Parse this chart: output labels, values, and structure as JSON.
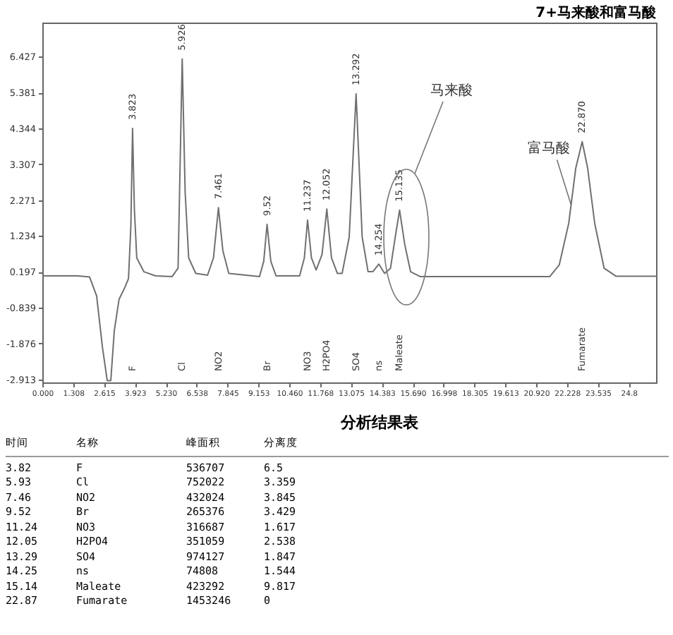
{
  "chart_data": [
    {
      "type": "line",
      "title": "7+马来酸和富马酸",
      "xlim": [
        0,
        26
      ],
      "xticks": [
        {
          "value": 0,
          "label": "0.000"
        },
        1.308,
        2.615,
        3.923,
        {
          "value": 5.23,
          "label": "5.230"
        },
        6.538,
        7.845,
        9.153,
        {
          "value": 10.46,
          "label": "10.460"
        },
        11.768,
        13.075,
        14.383,
        {
          "value": 15.69,
          "label": "15.690"
        },
        16.998,
        18.305,
        19.613,
        {
          "value": 20.92,
          "label": "20.920"
        },
        22.228,
        23.535,
        {
          "value": 24.843,
          "label": "24.8"
        }
      ],
      "ylim": [
        -3.0,
        7.4
      ],
      "yticks": [
        -2.913,
        -1.876,
        -0.839,
        0.197,
        1.234,
        2.271,
        3.307,
        4.344,
        5.381,
        6.427
      ],
      "grid": false,
      "line_style": "solid",
      "series": [
        {
          "color": "#707070",
          "x": [
            0,
            1.5,
            2.0,
            2.3,
            2.55,
            2.75,
            2.9,
            3.05,
            3.25,
            3.5,
            3.65,
            3.75,
            3.823,
            3.9,
            4.0,
            4.3,
            4.8,
            5.5,
            5.75,
            5.926,
            6.05,
            6.2,
            6.5,
            7.0,
            7.25,
            7.461,
            7.65,
            7.9,
            9.2,
            9.38,
            9.52,
            9.68,
            9.9,
            10.9,
            11.1,
            11.237,
            11.4,
            11.6,
            11.85,
            12.052,
            12.25,
            12.5,
            12.7,
            13.0,
            13.292,
            13.55,
            13.8,
            14.0,
            14.254,
            14.5,
            14.75,
            14.95,
            15.135,
            15.35,
            15.6,
            16.0,
            21.5,
            21.9,
            22.3,
            22.6,
            22.87,
            23.1,
            23.4,
            23.8,
            24.3,
            26
          ],
          "values": [
            0.08,
            0.08,
            0.05,
            -0.5,
            -2.0,
            -2.95,
            -2.95,
            -1.5,
            -0.6,
            -0.25,
            0.0,
            1.5,
            4.34,
            2.0,
            0.6,
            0.2,
            0.08,
            0.06,
            0.3,
            6.35,
            2.5,
            0.6,
            0.15,
            0.1,
            0.6,
            2.05,
            0.8,
            0.15,
            0.06,
            0.5,
            1.57,
            0.5,
            0.08,
            0.08,
            0.6,
            1.69,
            0.6,
            0.25,
            0.7,
            2.01,
            0.6,
            0.15,
            0.15,
            1.2,
            5.34,
            1.2,
            0.2,
            0.2,
            0.42,
            0.15,
            0.3,
            1.2,
            1.98,
            1.0,
            0.2,
            0.06,
            0.06,
            0.4,
            1.6,
            3.2,
            3.96,
            3.2,
            1.6,
            0.3,
            0.07,
            0.07
          ]
        }
      ],
      "annotations": [
        {
          "text": "3.823",
          "x": 3.823,
          "y": 4.34
        },
        {
          "text": "5.926",
          "x": 5.926,
          "y": 6.35
        },
        {
          "text": "7.461",
          "x": 7.461,
          "y": 2.05
        },
        {
          "text": "9.52",
          "x": 9.52,
          "y": 1.57
        },
        {
          "text": "11.237",
          "x": 11.237,
          "y": 1.69
        },
        {
          "text": "12.052",
          "x": 12.052,
          "y": 2.01
        },
        {
          "text": "13.292",
          "x": 13.292,
          "y": 5.34
        },
        {
          "text": "14.254",
          "x": 14.254,
          "y": 0.42
        },
        {
          "text": "15.135",
          "x": 15.135,
          "y": 1.98
        },
        {
          "text": "22.870",
          "x": 22.87,
          "y": 3.96
        },
        "F",
        "Cl",
        "NO2",
        "Br",
        "NO3",
        "H2PO4",
        "SO4",
        "ns",
        "Maleate",
        "Fumarate",
        "马来酸",
        {
          "text": "富马酸",
          "x": 22.4,
          "y": 2.13
        }
      ]
    },
    {
      "type": "other",
      "title": "分析结果表",
      "categories": [
        "时间",
        "名称",
        "峰面积",
        "分离度"
      ],
      "annotations": [
        "3.82",
        "F",
        "536707",
        "6.5",
        "5.93",
        "Cl",
        "752022",
        "3.359",
        "7.46",
        "NO2",
        "432024",
        "3.845",
        "9.52",
        "Br",
        "265376",
        "3.429",
        "11.24",
        "NO3",
        "316687",
        "1.617",
        "12.05",
        "H2PO4",
        "351059",
        "2.538",
        "13.29",
        "SO4",
        "974127",
        "1.847",
        "14.25",
        "ns",
        "74808",
        "1.544",
        "15.14",
        "Maleate",
        "423292",
        "9.817",
        "22.87",
        "Fumarate",
        "1453246",
        "0"
      ]
    }
  ]
}
